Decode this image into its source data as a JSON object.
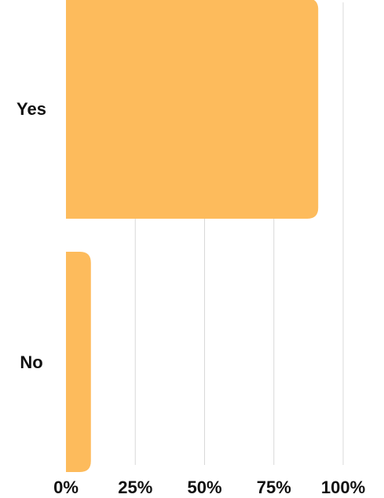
{
  "chart_data": {
    "type": "bar",
    "orientation": "horizontal",
    "categories": [
      "Yes",
      "No"
    ],
    "values": [
      91,
      9
    ],
    "x_ticks": [
      "0%",
      "25%",
      "50%",
      "75%",
      "100%"
    ],
    "xlim": [
      0,
      100
    ],
    "grid": true,
    "bar_color": "#FDBB5C",
    "title": "",
    "xlabel": "",
    "ylabel": ""
  }
}
